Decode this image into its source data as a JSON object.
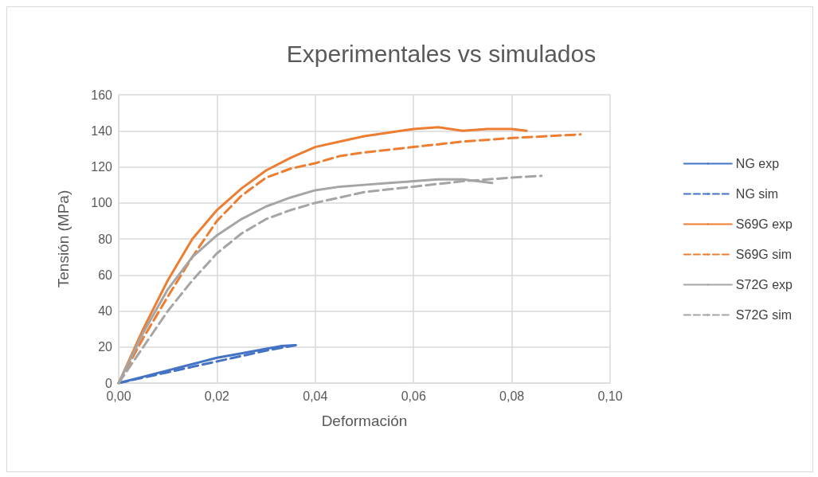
{
  "chart_data": {
    "type": "line",
    "title": "Experimentales vs simulados",
    "xlabel": "Deformación",
    "ylabel": "Tensión (MPa)",
    "xlim": [
      0,
      0.1
    ],
    "xticks": [
      {
        "value": 0,
        "label": "0,00"
      },
      {
        "value": 0.02,
        "label": "0,02"
      },
      {
        "value": 0.04,
        "label": "0,04"
      },
      {
        "value": 0.06,
        "label": "0,06"
      },
      {
        "value": 0.08,
        "label": "0,08"
      },
      {
        "value": 0.1,
        "label": "0,10"
      }
    ],
    "ylim": [
      0,
      160
    ],
    "yticks": [
      0,
      20,
      40,
      60,
      80,
      100,
      120,
      140,
      160
    ],
    "grid": true,
    "legend": "right",
    "marker": "none",
    "series": [
      {
        "name": "NG exp",
        "color": "#4472c4",
        "line_style": "solid",
        "x": [
          0,
          0.005,
          0.01,
          0.015,
          0.02,
          0.025,
          0.03,
          0.033,
          0.036
        ],
        "values": [
          0,
          3.5,
          7,
          10.5,
          14,
          16.5,
          19,
          20.5,
          21
        ]
      },
      {
        "name": "NG sim",
        "color": "#4472c4",
        "line_style": "dashed",
        "x": [
          0,
          0.005,
          0.01,
          0.015,
          0.02,
          0.025,
          0.03,
          0.036
        ],
        "values": [
          0,
          3,
          6,
          9,
          12,
          15,
          18,
          21
        ]
      },
      {
        "name": "S69G exp",
        "color": "#ed7d31",
        "line_style": "solid",
        "x": [
          0,
          0.005,
          0.01,
          0.015,
          0.02,
          0.025,
          0.03,
          0.035,
          0.04,
          0.045,
          0.05,
          0.055,
          0.06,
          0.065,
          0.07,
          0.075,
          0.08,
          0.083
        ],
        "values": [
          0,
          30,
          57,
          80,
          96,
          108,
          118,
          125,
          131,
          134,
          137,
          139,
          141,
          142,
          140,
          141,
          141,
          140
        ]
      },
      {
        "name": "S69G sim",
        "color": "#ed7d31",
        "line_style": "dashed",
        "x": [
          0,
          0.005,
          0.01,
          0.015,
          0.02,
          0.025,
          0.03,
          0.035,
          0.04,
          0.045,
          0.05,
          0.06,
          0.07,
          0.08,
          0.094
        ],
        "values": [
          0,
          25,
          48,
          70,
          90,
          104,
          114,
          119,
          122,
          126,
          128,
          131,
          134,
          136,
          138
        ]
      },
      {
        "name": "S72G exp",
        "color": "#a5a5a5",
        "line_style": "solid",
        "x": [
          0,
          0.005,
          0.01,
          0.015,
          0.02,
          0.025,
          0.03,
          0.035,
          0.04,
          0.045,
          0.05,
          0.055,
          0.06,
          0.065,
          0.07,
          0.073,
          0.076
        ],
        "values": [
          0,
          28,
          52,
          70,
          82,
          91,
          98,
          103,
          107,
          109,
          110,
          111,
          112,
          113,
          113,
          112,
          111
        ]
      },
      {
        "name": "S72G sim",
        "color": "#a5a5a5",
        "line_style": "dashed",
        "x": [
          0,
          0.005,
          0.01,
          0.015,
          0.02,
          0.025,
          0.03,
          0.035,
          0.04,
          0.045,
          0.05,
          0.06,
          0.07,
          0.08,
          0.086
        ],
        "values": [
          0,
          20,
          40,
          57,
          72,
          83,
          91,
          96,
          100,
          103,
          106,
          109,
          112,
          114,
          115
        ]
      }
    ]
  }
}
